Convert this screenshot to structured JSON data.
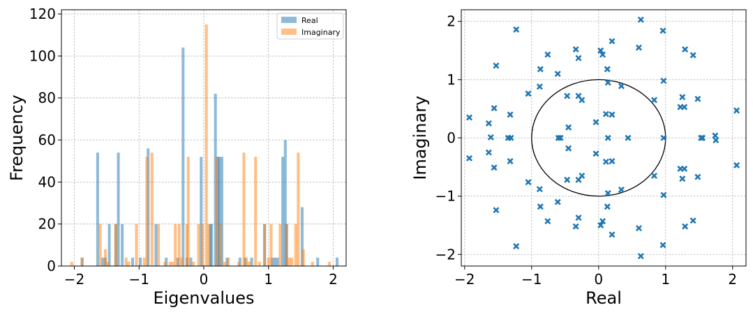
{
  "chart_data": [
    {
      "type": "bar",
      "subtype": "histogram",
      "xlabel": "Eigenvalues",
      "ylabel": "Frequency",
      "xlim": [
        -2.2,
        2.2
      ],
      "ylim": [
        0,
        122
      ],
      "xticks": [
        -2,
        -1,
        0,
        1,
        2
      ],
      "xtick_labels": [
        "−2",
        "−1",
        "0",
        "1",
        "2"
      ],
      "yticks": [
        0,
        20,
        40,
        60,
        80,
        100,
        120
      ],
      "ytick_labels": [
        "0",
        "20",
        "40",
        "60",
        "80",
        "100",
        "120"
      ],
      "grid": true,
      "legend_position": "top-right",
      "bin_width": 0.044,
      "series": [
        {
          "name": "Real",
          "color": "#1f77b4",
          "alpha": 0.5,
          "x": [
            -1.88,
            -1.64,
            -1.56,
            -1.52,
            -1.46,
            -1.36,
            -1.32,
            -1.26,
            -1.1,
            -0.98,
            -0.86,
            -0.74,
            -0.58,
            -0.4,
            -0.32,
            -0.26,
            -0.2,
            -0.04,
            0.1,
            0.12,
            0.18,
            0.22,
            0.24,
            0.28,
            0.36,
            0.56,
            0.64,
            0.74,
            0.94,
            1.06,
            1.1,
            1.14,
            1.22,
            1.26,
            1.28,
            1.52,
            1.76,
            2.06
          ],
          "values": [
            4,
            54,
            4,
            4,
            20,
            20,
            54,
            20,
            4,
            4,
            56,
            20,
            4,
            4,
            104,
            4,
            4,
            52,
            20,
            20,
            82,
            52,
            52,
            52,
            4,
            4,
            4,
            4,
            20,
            4,
            4,
            4,
            52,
            60,
            20,
            28,
            4,
            4
          ]
        },
        {
          "name": "Imaginary",
          "color": "#ff7f0e",
          "alpha": 0.5,
          "x": [
            -2.04,
            -1.88,
            -1.6,
            -1.52,
            -1.48,
            -1.36,
            -1.2,
            -1.16,
            -1.04,
            -0.92,
            -0.88,
            -0.8,
            -0.7,
            -0.6,
            -0.52,
            -0.48,
            -0.44,
            -0.38,
            -0.34,
            -0.26,
            -0.24,
            -0.16,
            -0.08,
            -0.02,
            0.04,
            0.08,
            0.2,
            0.26,
            0.32,
            0.38,
            0.54,
            0.62,
            0.66,
            0.7,
            0.8,
            0.86,
            0.94,
            1.0,
            1.04,
            1.18,
            1.28,
            1.32,
            1.36,
            1.42,
            1.46,
            1.54,
            1.68,
            1.94
          ],
          "values": [
            2,
            4,
            20,
            8,
            2,
            20,
            4,
            2,
            20,
            4,
            52,
            54,
            20,
            2,
            2,
            2,
            20,
            20,
            4,
            20,
            52,
            2,
            20,
            20,
            115,
            20,
            52,
            20,
            2,
            4,
            2,
            54,
            4,
            2,
            52,
            2,
            20,
            4,
            20,
            20,
            20,
            4,
            4,
            20,
            54,
            8,
            2,
            2
          ]
        }
      ]
    },
    {
      "type": "scatter",
      "xlabel": "Real",
      "ylabel": "Imaginary",
      "xlim": [
        -2.05,
        2.2
      ],
      "ylim": [
        -2.2,
        2.2
      ],
      "xticks": [
        -2,
        -1,
        0,
        1,
        2
      ],
      "xtick_labels": [
        "−2",
        "−1",
        "0",
        "1",
        "2"
      ],
      "yticks": [
        -2,
        -1,
        0,
        1,
        2
      ],
      "ytick_labels": [
        "−2",
        "−1",
        "0",
        "1",
        "2"
      ],
      "grid": true,
      "marker": "x",
      "color": "#1f77b4",
      "unit_circle": {
        "center": [
          0,
          0
        ],
        "radius": 1,
        "color": "#000000"
      },
      "points": [
        [
          -1.93,
          0.35
        ],
        [
          -1.64,
          0.25
        ],
        [
          -1.61,
          0.01
        ],
        [
          -1.56,
          0.51
        ],
        [
          -1.31,
          0.0
        ],
        [
          -1.35,
          0.0
        ],
        [
          -1.32,
          0.4
        ],
        [
          -1.53,
          1.24
        ],
        [
          -1.23,
          1.86
        ],
        [
          -1.05,
          0.76
        ],
        [
          -0.87,
          1.18
        ],
        [
          -0.88,
          0.88
        ],
        [
          -0.61,
          1.1
        ],
        [
          -0.76,
          1.43
        ],
        [
          -0.34,
          1.52
        ],
        [
          -0.3,
          1.37
        ],
        [
          -0.47,
          0.72
        ],
        [
          -0.3,
          0.72
        ],
        [
          -0.25,
          0.65
        ],
        [
          -0.6,
          0.0
        ],
        [
          -0.57,
          0.0
        ],
        [
          -0.45,
          0.18
        ],
        [
          -0.04,
          0.27
        ],
        [
          0.03,
          1.5
        ],
        [
          0.06,
          1.43
        ],
        [
          0.13,
          1.18
        ],
        [
          0.2,
          1.66
        ],
        [
          0.14,
          0.95
        ],
        [
          0.34,
          0.89
        ],
        [
          0.11,
          0.41
        ],
        [
          0.2,
          0.4
        ],
        [
          0.14,
          0.0
        ],
        [
          0.44,
          0.0
        ],
        [
          0.6,
          1.55
        ],
        [
          0.63,
          2.03
        ],
        [
          0.83,
          0.65
        ],
        [
          0.96,
          1.84
        ],
        [
          0.97,
          0.98
        ],
        [
          0.97,
          0.0
        ],
        [
          1.22,
          0.53
        ],
        [
          1.25,
          0.7
        ],
        [
          1.29,
          1.52
        ],
        [
          1.41,
          1.42
        ],
        [
          1.28,
          0.53
        ],
        [
          1.48,
          0.67
        ],
        [
          1.53,
          0.0
        ],
        [
          1.55,
          0.0
        ],
        [
          1.74,
          0.04
        ],
        [
          1.75,
          -0.04
        ],
        [
          2.06,
          0.47
        ],
        [
          -1.93,
          -0.35
        ],
        [
          -1.64,
          -0.25
        ],
        [
          -1.56,
          -0.51
        ],
        [
          -1.32,
          -0.4
        ],
        [
          -1.53,
          -1.24
        ],
        [
          -1.23,
          -1.86
        ],
        [
          -1.05,
          -0.76
        ],
        [
          -0.87,
          -1.18
        ],
        [
          -0.88,
          -0.88
        ],
        [
          -0.61,
          -1.1
        ],
        [
          -0.76,
          -1.43
        ],
        [
          -0.34,
          -1.52
        ],
        [
          -0.3,
          -1.37
        ],
        [
          -0.47,
          -0.72
        ],
        [
          -0.3,
          -0.72
        ],
        [
          -0.25,
          -0.65
        ],
        [
          -0.45,
          -0.18
        ],
        [
          -0.04,
          -0.27
        ],
        [
          0.03,
          -1.5
        ],
        [
          0.06,
          -1.43
        ],
        [
          0.13,
          -1.18
        ],
        [
          0.2,
          -1.66
        ],
        [
          0.14,
          -0.95
        ],
        [
          0.34,
          -0.89
        ],
        [
          0.11,
          -0.41
        ],
        [
          0.2,
          -0.4
        ],
        [
          0.6,
          -1.55
        ],
        [
          0.63,
          -2.03
        ],
        [
          0.83,
          -0.65
        ],
        [
          0.96,
          -1.84
        ],
        [
          0.97,
          -0.98
        ],
        [
          1.22,
          -0.53
        ],
        [
          1.25,
          -0.7
        ],
        [
          1.29,
          -1.52
        ],
        [
          1.41,
          -1.42
        ],
        [
          1.28,
          -0.53
        ],
        [
          1.48,
          -0.67
        ],
        [
          2.06,
          -0.47
        ]
      ]
    }
  ]
}
